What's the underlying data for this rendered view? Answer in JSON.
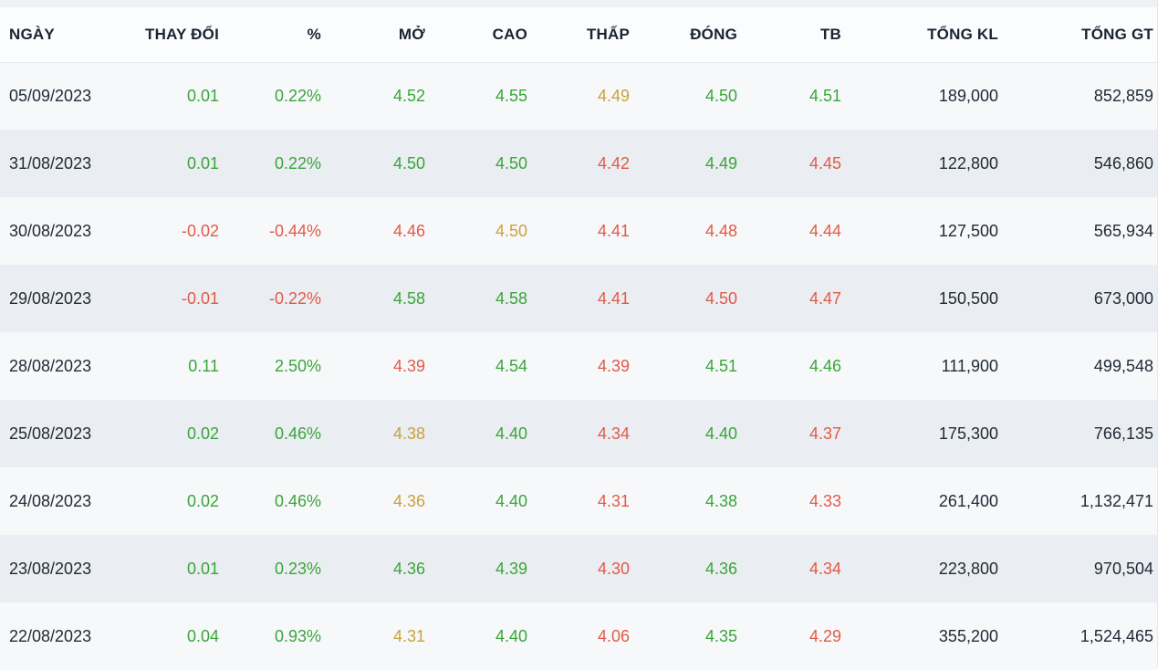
{
  "colors": {
    "up": "#3aa53a",
    "down": "#e25a48",
    "neutral": "#c8a23b",
    "text": "#212b36",
    "header_text": "#1b2430",
    "divider": "#e4e7ec",
    "row_bg": "#f7f8fa",
    "row_alt_bg": "#eaedf1"
  },
  "table": {
    "columns": [
      {
        "key": "date",
        "label": "NGÀY",
        "align": "left"
      },
      {
        "key": "change",
        "label": "THAY ĐỔI",
        "align": "right"
      },
      {
        "key": "pct",
        "label": "%",
        "align": "right"
      },
      {
        "key": "open",
        "label": "MỞ",
        "align": "right"
      },
      {
        "key": "high",
        "label": "CAO",
        "align": "right"
      },
      {
        "key": "low",
        "label": "THẤP",
        "align": "right"
      },
      {
        "key": "close",
        "label": "ĐÓNG",
        "align": "right"
      },
      {
        "key": "avg",
        "label": "TB",
        "align": "right"
      },
      {
        "key": "volume",
        "label": "TỔNG KL",
        "align": "right"
      },
      {
        "key": "value",
        "label": "TỔNG GT",
        "align": "right"
      }
    ],
    "rows": [
      {
        "date": "05/09/2023",
        "change": {
          "v": "0.01",
          "c": "up"
        },
        "pct": {
          "v": "0.22%",
          "c": "up"
        },
        "open": {
          "v": "4.52",
          "c": "up"
        },
        "high": {
          "v": "4.55",
          "c": "up"
        },
        "low": {
          "v": "4.49",
          "c": "neutral"
        },
        "close": {
          "v": "4.50",
          "c": "up"
        },
        "avg": {
          "v": "4.51",
          "c": "up"
        },
        "volume": "189,000",
        "value": "852,859"
      },
      {
        "date": "31/08/2023",
        "change": {
          "v": "0.01",
          "c": "up"
        },
        "pct": {
          "v": "0.22%",
          "c": "up"
        },
        "open": {
          "v": "4.50",
          "c": "up"
        },
        "high": {
          "v": "4.50",
          "c": "up"
        },
        "low": {
          "v": "4.42",
          "c": "down"
        },
        "close": {
          "v": "4.49",
          "c": "up"
        },
        "avg": {
          "v": "4.45",
          "c": "down"
        },
        "volume": "122,800",
        "value": "546,860"
      },
      {
        "date": "30/08/2023",
        "change": {
          "v": "-0.02",
          "c": "down"
        },
        "pct": {
          "v": "-0.44%",
          "c": "down"
        },
        "open": {
          "v": "4.46",
          "c": "down"
        },
        "high": {
          "v": "4.50",
          "c": "neutral"
        },
        "low": {
          "v": "4.41",
          "c": "down"
        },
        "close": {
          "v": "4.48",
          "c": "down"
        },
        "avg": {
          "v": "4.44",
          "c": "down"
        },
        "volume": "127,500",
        "value": "565,934"
      },
      {
        "date": "29/08/2023",
        "change": {
          "v": "-0.01",
          "c": "down"
        },
        "pct": {
          "v": "-0.22%",
          "c": "down"
        },
        "open": {
          "v": "4.58",
          "c": "up"
        },
        "high": {
          "v": "4.58",
          "c": "up"
        },
        "low": {
          "v": "4.41",
          "c": "down"
        },
        "close": {
          "v": "4.50",
          "c": "down"
        },
        "avg": {
          "v": "4.47",
          "c": "down"
        },
        "volume": "150,500",
        "value": "673,000"
      },
      {
        "date": "28/08/2023",
        "change": {
          "v": "0.11",
          "c": "up"
        },
        "pct": {
          "v": "2.50%",
          "c": "up"
        },
        "open": {
          "v": "4.39",
          "c": "down"
        },
        "high": {
          "v": "4.54",
          "c": "up"
        },
        "low": {
          "v": "4.39",
          "c": "down"
        },
        "close": {
          "v": "4.51",
          "c": "up"
        },
        "avg": {
          "v": "4.46",
          "c": "up"
        },
        "volume": "111,900",
        "value": "499,548"
      },
      {
        "date": "25/08/2023",
        "change": {
          "v": "0.02",
          "c": "up"
        },
        "pct": {
          "v": "0.46%",
          "c": "up"
        },
        "open": {
          "v": "4.38",
          "c": "neutral"
        },
        "high": {
          "v": "4.40",
          "c": "up"
        },
        "low": {
          "v": "4.34",
          "c": "down"
        },
        "close": {
          "v": "4.40",
          "c": "up"
        },
        "avg": {
          "v": "4.37",
          "c": "down"
        },
        "volume": "175,300",
        "value": "766,135"
      },
      {
        "date": "24/08/2023",
        "change": {
          "v": "0.02",
          "c": "up"
        },
        "pct": {
          "v": "0.46%",
          "c": "up"
        },
        "open": {
          "v": "4.36",
          "c": "neutral"
        },
        "high": {
          "v": "4.40",
          "c": "up"
        },
        "low": {
          "v": "4.31",
          "c": "down"
        },
        "close": {
          "v": "4.38",
          "c": "up"
        },
        "avg": {
          "v": "4.33",
          "c": "down"
        },
        "volume": "261,400",
        "value": "1,132,471"
      },
      {
        "date": "23/08/2023",
        "change": {
          "v": "0.01",
          "c": "up"
        },
        "pct": {
          "v": "0.23%",
          "c": "up"
        },
        "open": {
          "v": "4.36",
          "c": "up"
        },
        "high": {
          "v": "4.39",
          "c": "up"
        },
        "low": {
          "v": "4.30",
          "c": "down"
        },
        "close": {
          "v": "4.36",
          "c": "up"
        },
        "avg": {
          "v": "4.34",
          "c": "down"
        },
        "volume": "223,800",
        "value": "970,504"
      },
      {
        "date": "22/08/2023",
        "change": {
          "v": "0.04",
          "c": "up"
        },
        "pct": {
          "v": "0.93%",
          "c": "up"
        },
        "open": {
          "v": "4.31",
          "c": "neutral"
        },
        "high": {
          "v": "4.40",
          "c": "up"
        },
        "low": {
          "v": "4.06",
          "c": "down"
        },
        "close": {
          "v": "4.35",
          "c": "up"
        },
        "avg": {
          "v": "4.29",
          "c": "down"
        },
        "volume": "355,200",
        "value": "1,524,465"
      }
    ]
  }
}
